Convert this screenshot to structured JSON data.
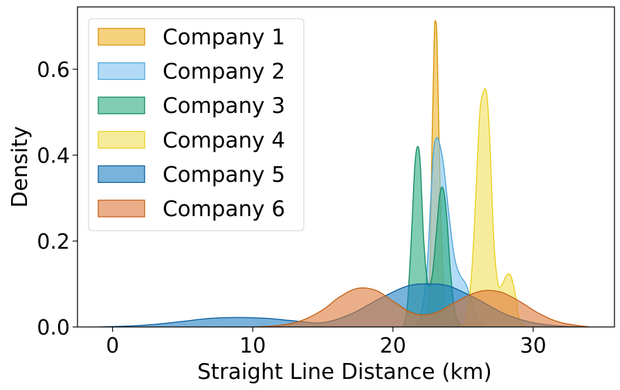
{
  "chart_data": {
    "type": "area",
    "title": "",
    "xlabel": "Straight Line Distance (km)",
    "ylabel": "Density",
    "xlim": [
      -2.5,
      35.8
    ],
    "ylim": [
      0,
      0.745
    ],
    "xticks": [
      0,
      10,
      20,
      30
    ],
    "yticks": [
      0.0,
      0.2,
      0.4,
      0.6
    ],
    "xtick_labels": [
      "0",
      "10",
      "20",
      "30"
    ],
    "ytick_labels": [
      "0.0",
      "0.2",
      "0.4",
      "0.6"
    ],
    "grid": false,
    "legend_position": "top-left",
    "series": [
      {
        "name": "Company 1",
        "fill": "#f0b429",
        "stroke": "#d4950a",
        "x": [
          22.0,
          22.3,
          22.6,
          22.8,
          22.95,
          23.05,
          23.15,
          23.35,
          23.6,
          23.9,
          24.3,
          24.8,
          25.2
        ],
        "y": [
          0.0,
          0.02,
          0.1,
          0.45,
          0.68,
          0.71,
          0.66,
          0.35,
          0.1,
          0.02,
          0.01,
          0.005,
          0.0
        ]
      },
      {
        "name": "Company 2",
        "fill": "#7ec4ee",
        "stroke": "#4aa3d8",
        "x": [
          21.6,
          22.0,
          22.4,
          22.7,
          22.9,
          23.1,
          23.3,
          23.6,
          24.0,
          24.4,
          24.8,
          25.2,
          25.6,
          26.0,
          26.4
        ],
        "y": [
          0.0,
          0.03,
          0.12,
          0.3,
          0.41,
          0.44,
          0.43,
          0.38,
          0.26,
          0.16,
          0.12,
          0.1,
          0.06,
          0.02,
          0.0
        ]
      },
      {
        "name": "Company 3",
        "fill": "#2bac7f",
        "stroke": "#0f8a62",
        "x": [
          20.7,
          21.0,
          21.3,
          21.55,
          21.75,
          21.95,
          22.2,
          22.5,
          22.8,
          23.1,
          23.35,
          23.6,
          23.85,
          24.1,
          24.4,
          24.7,
          25.0
        ],
        "y": [
          0.0,
          0.04,
          0.2,
          0.37,
          0.42,
          0.38,
          0.2,
          0.1,
          0.12,
          0.22,
          0.31,
          0.32,
          0.25,
          0.13,
          0.04,
          0.01,
          0.0
        ]
      },
      {
        "name": "Company 4",
        "fill": "#f2e05a",
        "stroke": "#e8cf1d",
        "x": [
          24.8,
          25.2,
          25.6,
          25.9,
          26.2,
          26.5,
          26.7,
          26.9,
          27.2,
          27.5,
          27.8,
          28.1,
          28.4,
          28.7,
          29.0,
          29.4
        ],
        "y": [
          0.0,
          0.02,
          0.12,
          0.3,
          0.5,
          0.55,
          0.54,
          0.44,
          0.2,
          0.1,
          0.1,
          0.12,
          0.12,
          0.08,
          0.02,
          0.0
        ]
      },
      {
        "name": "Company 5",
        "fill": "#1f7fc1",
        "stroke": "#0a5f9e",
        "x": [
          -1.0,
          1.0,
          3.0,
          5.0,
          7.0,
          9.0,
          11.0,
          13.0,
          15.0,
          17.0,
          19.0,
          21.0,
          22.5,
          24.0,
          26.0,
          28.0,
          30.0,
          32.0,
          34.0
        ],
        "y": [
          0.0,
          0.002,
          0.006,
          0.013,
          0.02,
          0.022,
          0.02,
          0.014,
          0.01,
          0.03,
          0.065,
          0.095,
          0.1,
          0.095,
          0.065,
          0.03,
          0.01,
          0.002,
          0.0
        ]
      },
      {
        "name": "Company 6",
        "fill": "#dc7a3a",
        "stroke": "#c45f12",
        "x": [
          10.0,
          12.0,
          13.5,
          15.0,
          16.2,
          17.5,
          18.8,
          20.0,
          21.2,
          22.2,
          23.2,
          24.3,
          25.5,
          26.6,
          27.8,
          29.0,
          30.5,
          32.0,
          34.0
        ],
        "y": [
          0.0,
          0.004,
          0.015,
          0.04,
          0.07,
          0.09,
          0.085,
          0.06,
          0.035,
          0.028,
          0.035,
          0.055,
          0.075,
          0.085,
          0.08,
          0.06,
          0.03,
          0.01,
          0.0
        ]
      }
    ]
  }
}
